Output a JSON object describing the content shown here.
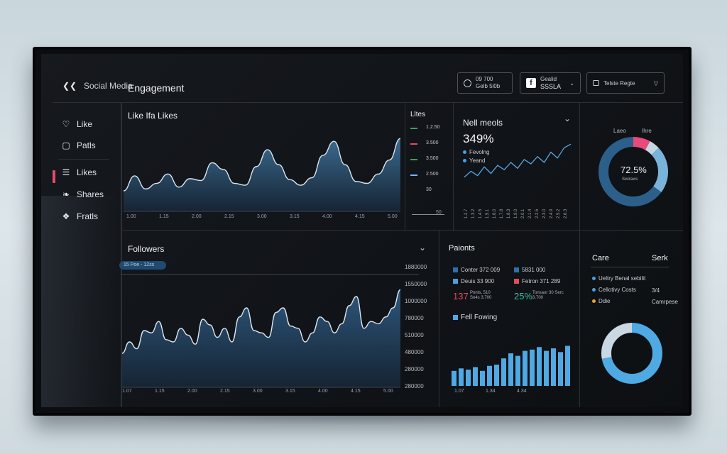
{
  "app": {
    "brand_line1": "Social Media",
    "brand_line2": "Engagement"
  },
  "header": {
    "box1": {
      "line1": "09 700",
      "line2": "Gelb 5l0b"
    },
    "box2": {
      "icon": "f",
      "line1": "Gealid",
      "line2": "SSSLA"
    },
    "box3": {
      "label": "Telste Regte"
    }
  },
  "sidebar": {
    "items": [
      {
        "label": "Like",
        "icon": "heart-icon"
      },
      {
        "label": "Patls",
        "icon": "bag-icon"
      },
      {
        "label": "Likes",
        "icon": "bars-icon"
      },
      {
        "label": "Shares",
        "icon": "share-icon"
      },
      {
        "label": "Fratls",
        "icon": "flame-icon"
      }
    ],
    "accent": "#e84a6a"
  },
  "likes_panel": {
    "title": "Like Ifa Likes",
    "xticks": [
      "1.00",
      "1.15",
      "2.00",
      "2.15",
      "3.00",
      "3.15",
      "4.00",
      "4.15",
      "5.00"
    ]
  },
  "likes_legend": {
    "title": "Lltes",
    "rows": [
      "1.2.50",
      "3.500",
      "3.500",
      "2.500",
      "30"
    ],
    "colors": [
      "#3aa35a",
      "#e84a6a",
      "#3aa35a",
      "#7ab4ff"
    ],
    "footer": "50"
  },
  "metric_panel": {
    "title": "Nell meols",
    "value": "349%",
    "legend": [
      "Fevolng",
      "Yeand"
    ],
    "bars": [
      "1.2.7",
      "1.3.2",
      "1.4.5",
      "1.5.1",
      "1.6.0",
      "1.7.8",
      "1.8.3",
      "1.9.0",
      "2.0.1",
      "2.1.4",
      "2.2.5",
      "2.3.0",
      "2.4.9",
      "2.5.2",
      "2.6.3"
    ]
  },
  "donut_top": {
    "label_left": "Laeo",
    "label_right": "Ihre",
    "center_value": "72.5%",
    "center_label": "Swiraws",
    "colors": [
      "#2c5f8a",
      "#7ab3d9",
      "#e84a7a",
      "#c7d7e2"
    ]
  },
  "followers_panel": {
    "title": "Followers",
    "pill": "15 Poe - 12ss",
    "yticks": [
      "1880000",
      "1550000",
      "1000000",
      "780000",
      "510000",
      "480000",
      "280000",
      "280000"
    ],
    "xticks": [
      "1.07",
      "1.15",
      "2.00",
      "2.15",
      "3.00",
      "3.15",
      "4.00",
      "4.15",
      "5.00"
    ]
  },
  "points_panel": {
    "title": "Paionts",
    "rows": [
      {
        "left": "Conter 372 009",
        "right": "5831 000"
      },
      {
        "left": "Deuis 33 900",
        "right": "Fetron 371 289"
      }
    ],
    "big_left": "137",
    "big_left_sub": "Ponts, 510 Sn4s 3.700",
    "big_right": "25%",
    "big_right_sub": "Tonsaor 30 Serc 3.700",
    "section_title": "Fell Fowing",
    "bar_labels": [
      "1.07",
      "1.34",
      "4.34"
    ],
    "bar_values": [
      12,
      14,
      13,
      15,
      12,
      16,
      17,
      22,
      26,
      24,
      28,
      29,
      31,
      28,
      30,
      27,
      32
    ]
  },
  "care_panel": {
    "title": "Care",
    "title_right": "Serk",
    "rows": [
      {
        "label": "Ueltry Benal sebilit",
        "right": ""
      },
      {
        "label": "Cellotivy Costs",
        "right": "3/4"
      },
      {
        "label": "Ddie",
        "right": "Camrpese"
      }
    ],
    "row_colors": [
      "#4a9fe0",
      "#4a9fe0",
      "#f0a030"
    ]
  },
  "donut_bottom": {
    "colors": [
      "#4fa9e3",
      "#c9d8e3"
    ]
  },
  "likes_series": [
    22,
    38,
    24,
    30,
    40,
    26,
    35,
    33,
    52,
    45,
    30,
    28,
    48,
    66,
    50,
    34,
    28,
    36,
    60,
    75,
    50,
    32,
    30,
    40,
    55,
    78
  ],
  "metric_series": [
    10,
    18,
    12,
    24,
    15,
    26,
    20,
    30,
    22,
    34,
    28,
    38,
    30,
    44,
    36,
    50,
    55
  ],
  "followers_series": [
    30,
    40,
    34,
    50,
    48,
    58,
    42,
    40,
    52,
    46,
    38,
    60,
    55,
    44,
    52,
    40,
    62,
    70,
    50,
    48,
    44,
    66,
    70,
    54,
    52,
    40,
    48,
    62,
    58,
    48,
    56,
    72,
    80,
    52,
    58,
    56,
    62,
    70,
    86
  ]
}
